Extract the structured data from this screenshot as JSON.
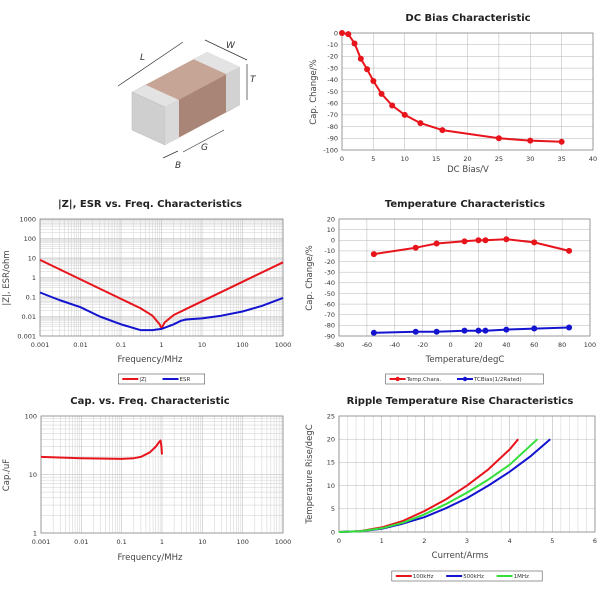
{
  "component_figure": {
    "dimension_labels": {
      "L": "L",
      "W": "W",
      "T": "T",
      "G": "G",
      "B": "B"
    },
    "colors": {
      "body": "#b8978a",
      "terminal": "#d6d6d6"
    }
  },
  "chart_data": [
    {
      "id": "dc_bias",
      "type": "line",
      "title": "DC Bias Characteristic",
      "xlabel": "DC Bias/V",
      "ylabel": "Cap. Change/%",
      "xscale": "linear",
      "yscale": "linear",
      "xlim": [
        0,
        40
      ],
      "ylim": [
        -100,
        0
      ],
      "xticks": [
        0,
        5,
        10,
        15,
        20,
        25,
        30,
        35,
        40
      ],
      "yticks": [
        0,
        -10,
        -20,
        -30,
        -40,
        -50,
        -60,
        -70,
        -80,
        -90,
        -100
      ],
      "grid": true,
      "legend": null,
      "series": [
        {
          "color": "#e8141b",
          "markers": true,
          "x": [
            0,
            1,
            2,
            3,
            4,
            5,
            6.3,
            8,
            10,
            12.5,
            16,
            25,
            30,
            35
          ],
          "y": [
            0,
            -1,
            -9,
            -22,
            -31,
            -41,
            -52,
            -62,
            -70,
            -77,
            -83,
            -90,
            -92,
            -93
          ]
        }
      ]
    },
    {
      "id": "impedance_esr",
      "type": "line",
      "title": "|Z|, ESR vs. Freq. Characteristics",
      "xlabel": "Frequency/MHz",
      "ylabel": "|Z|, ESR/ohm",
      "xscale": "log",
      "yscale": "log",
      "xlim": [
        0.001,
        1000
      ],
      "ylim": [
        0.001,
        1000
      ],
      "xticks": [
        0.001,
        0.01,
        0.1,
        1,
        10,
        100,
        1000
      ],
      "yticks": [
        0.001,
        0.01,
        0.1,
        1,
        10,
        100,
        1000
      ],
      "xtick_labels": [
        "0.001",
        "0.01",
        "0.1",
        "1",
        "10",
        "100",
        "1000"
      ],
      "ytick_labels": [
        "0.001",
        "0.01",
        "0.1",
        "1",
        "10",
        "100",
        "1000"
      ],
      "grid": true,
      "legend": "bottom",
      "series": [
        {
          "name": "|Z|",
          "color": "#e8141b",
          "markers": false,
          "x": [
            0.001,
            0.01,
            0.1,
            0.3,
            0.6,
            0.9,
            1,
            1.2,
            2,
            5,
            10,
            100,
            1000
          ],
          "y": [
            8,
            0.8,
            0.08,
            0.027,
            0.011,
            0.004,
            0.0025,
            0.005,
            0.012,
            0.03,
            0.06,
            0.6,
            6
          ]
        },
        {
          "name": "ESR",
          "color": "#1414d0",
          "markers": false,
          "x": [
            0.001,
            0.003,
            0.01,
            0.03,
            0.1,
            0.3,
            0.6,
            1,
            2,
            3,
            4,
            10,
            30,
            100,
            300,
            1000
          ],
          "y": [
            0.17,
            0.07,
            0.03,
            0.01,
            0.004,
            0.002,
            0.002,
            0.0023,
            0.004,
            0.006,
            0.007,
            0.008,
            0.011,
            0.018,
            0.035,
            0.09
          ]
        }
      ]
    },
    {
      "id": "temperature",
      "type": "line",
      "title": "Temperature Characteristics",
      "xlabel": "Temperature/degC",
      "ylabel": "Cap. Change/%",
      "xscale": "linear",
      "yscale": "linear",
      "xlim": [
        -80,
        100
      ],
      "ylim": [
        -90,
        20
      ],
      "xticks": [
        -80,
        -60,
        -40,
        -20,
        0,
        20,
        40,
        60,
        80,
        100
      ],
      "yticks": [
        20,
        10,
        0,
        -10,
        -20,
        -30,
        -40,
        -50,
        -60,
        -70,
        -80,
        -90
      ],
      "grid": true,
      "legend": "bottom",
      "series": [
        {
          "name": "Temp.Chara.",
          "color": "#e8141b",
          "markers": true,
          "x": [
            -55,
            -25,
            -10,
            10,
            20,
            25,
            40,
            60,
            85
          ],
          "y": [
            -13,
            -7,
            -3,
            -1,
            0,
            0,
            1,
            -2,
            -10
          ]
        },
        {
          "name": "TCBias(1/2Rated)",
          "color": "#1414d0",
          "markers": true,
          "x": [
            -55,
            -25,
            -10,
            10,
            20,
            25,
            40,
            60,
            85
          ],
          "y": [
            -87,
            -86,
            -86,
            -85,
            -85,
            -85,
            -84,
            -83,
            -82
          ]
        }
      ]
    },
    {
      "id": "cap_vs_freq",
      "type": "line",
      "title": "Cap. vs. Freq. Characteristic",
      "xlabel": "Frequency/MHz",
      "ylabel": "Cap./uF",
      "xscale": "log",
      "yscale": "log",
      "xlim": [
        0.001,
        1000
      ],
      "ylim": [
        1,
        100
      ],
      "xticks": [
        0.001,
        0.01,
        0.1,
        1,
        10,
        100,
        1000
      ],
      "yticks": [
        1,
        10,
        100
      ],
      "xtick_labels": [
        "0.001",
        "0.01",
        "0.1",
        "1",
        "10",
        "100",
        "1000"
      ],
      "ytick_labels": [
        "1",
        "10",
        "100"
      ],
      "grid": true,
      "legend": null,
      "series": [
        {
          "color": "#e8141b",
          "markers": false,
          "x": [
            0.001,
            0.01,
            0.1,
            0.2,
            0.3,
            0.5,
            0.7,
            0.85,
            0.92,
            0.97,
            1
          ],
          "y": [
            20,
            19,
            18.5,
            19,
            20,
            24,
            30,
            36,
            38,
            30,
            22
          ]
        }
      ]
    },
    {
      "id": "ripple_temp_rise",
      "type": "line",
      "title": "Ripple Temperature Rise Characteristics",
      "xlabel": "Current/Arms",
      "ylabel": "Temperature Rise/degC",
      "xscale": "linear",
      "yscale": "linear",
      "xlim": [
        0,
        6
      ],
      "ylim": [
        0,
        25
      ],
      "xticks": [
        0,
        1,
        2,
        3,
        4,
        5,
        6
      ],
      "yticks": [
        0,
        5,
        10,
        15,
        20,
        25
      ],
      "grid": true,
      "legend": "bottom",
      "series": [
        {
          "name": "100kHz",
          "color": "#e8141b",
          "markers": false,
          "x": [
            0,
            0.5,
            1,
            1.5,
            2,
            2.5,
            3,
            3.5,
            4,
            4.2
          ],
          "y": [
            0,
            0.2,
            1,
            2.4,
            4.5,
            7,
            10,
            13.5,
            17.8,
            20
          ]
        },
        {
          "name": "500kHz",
          "color": "#1414d0",
          "markers": false,
          "x": [
            0,
            0.5,
            1,
            1.5,
            2,
            2.5,
            3,
            3.5,
            4,
            4.5,
            4.95
          ],
          "y": [
            0,
            0.15,
            0.7,
            1.8,
            3.2,
            5.1,
            7.3,
            10,
            13,
            16.4,
            20
          ]
        },
        {
          "name": "1MHz",
          "color": "#33e03a",
          "markers": false,
          "x": [
            0,
            0.5,
            1,
            1.5,
            2,
            2.5,
            3,
            3.5,
            4,
            4.65
          ],
          "y": [
            0,
            0.15,
            0.8,
            2,
            3.8,
            6,
            8.5,
            11.3,
            14.5,
            20
          ]
        }
      ]
    }
  ]
}
